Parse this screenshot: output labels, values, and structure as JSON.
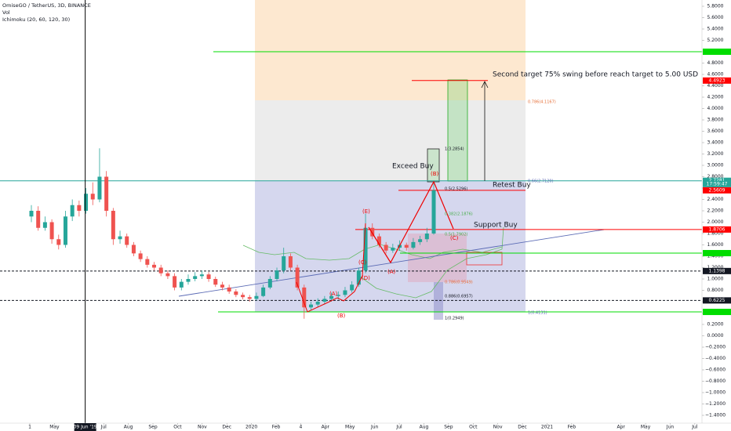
{
  "chart_data": {
    "type": "candlestick",
    "title": "OmiseGO / TetherUS, 3D, BINANCE",
    "indicators": [
      "Vol",
      "Ichimoku (20, 60, 120, 30)"
    ],
    "ylim": [
      -1.4,
      5.8
    ],
    "yticks": [
      {
        "value": 5.8,
        "label": "5.8000"
      },
      {
        "value": 5.6,
        "label": "5.6000"
      },
      {
        "value": 5.4,
        "label": "5.4000"
      },
      {
        "value": 5.2,
        "label": "5.2000"
      },
      {
        "value": 5.0,
        "label": "5.0000"
      },
      {
        "value": 4.8,
        "label": "4.8000"
      },
      {
        "value": 4.6,
        "label": "4.6000"
      },
      {
        "value": 4.4,
        "label": "4.4000"
      },
      {
        "value": 4.2,
        "label": "4.2000"
      },
      {
        "value": 4.0,
        "label": "4.0000"
      },
      {
        "value": 3.8,
        "label": "3.8000"
      },
      {
        "value": 3.6,
        "label": "3.6000"
      },
      {
        "value": 3.4,
        "label": "3.4000"
      },
      {
        "value": 3.2,
        "label": "3.2000"
      },
      {
        "value": 3.0,
        "label": "3.0000"
      },
      {
        "value": 2.8,
        "label": "2.8000"
      },
      {
        "value": 2.6,
        "label": "2.6000"
      },
      {
        "value": 2.4,
        "label": "2.4000"
      },
      {
        "value": 2.2,
        "label": "2.2000"
      },
      {
        "value": 2.0,
        "label": "2.0000"
      },
      {
        "value": 1.8,
        "label": "1.8000"
      },
      {
        "value": 1.6,
        "label": "1.6000"
      },
      {
        "value": 1.4,
        "label": "1.4000"
      },
      {
        "value": 1.2,
        "label": "1.2000"
      },
      {
        "value": 1.0,
        "label": "1.0000"
      },
      {
        "value": 0.8,
        "label": "0.8000"
      },
      {
        "value": 0.6,
        "label": "0.6000"
      },
      {
        "value": 0.4,
        "label": "0.4000"
      },
      {
        "value": 0.2,
        "label": "0.2000"
      },
      {
        "value": 0,
        "label": "0.0000"
      },
      {
        "value": -0.2,
        "label": "−0.2000"
      },
      {
        "value": -0.4,
        "label": "−0.4000"
      },
      {
        "value": -0.6,
        "label": "−0.6000"
      },
      {
        "value": -0.8,
        "label": "−0.8000"
      },
      {
        "value": -1.0,
        "label": "−1.0000"
      },
      {
        "value": -1.2,
        "label": "−1.2000"
      },
      {
        "value": -1.4,
        "label": "−1.4000"
      }
    ],
    "xlim": [
      -1.21,
      27.29
    ],
    "xticks": [
      {
        "value": 0,
        "label": "1"
      },
      {
        "value": 1,
        "label": "May"
      },
      {
        "value": 3,
        "label": "Jul"
      },
      {
        "value": 4,
        "label": "Aug"
      },
      {
        "value": 5,
        "label": "Sep"
      },
      {
        "value": 6,
        "label": "Oct"
      },
      {
        "value": 7,
        "label": "Nov"
      },
      {
        "value": 8,
        "label": "Dec"
      },
      {
        "value": 9,
        "label": "2020"
      },
      {
        "value": 10,
        "label": "Feb"
      },
      {
        "value": 11,
        "label": "4"
      },
      {
        "value": 12,
        "label": "Apr"
      },
      {
        "value": 13,
        "label": "May"
      },
      {
        "value": 14,
        "label": "Jun"
      },
      {
        "value": 15,
        "label": "Jul"
      },
      {
        "value": 16,
        "label": "Aug"
      },
      {
        "value": 17,
        "label": "Sep"
      },
      {
        "value": 18,
        "label": "Oct"
      },
      {
        "value": 19,
        "label": "Nov"
      },
      {
        "value": 20,
        "label": "Dec"
      },
      {
        "value": 21,
        "label": "2021"
      },
      {
        "value": 22,
        "label": "Feb"
      },
      {
        "value": 24,
        "label": "Apr"
      },
      {
        "value": 25,
        "label": "May"
      },
      {
        "value": 26,
        "label": "Jun"
      },
      {
        "value": 27,
        "label": "Jul"
      }
    ],
    "crosshair": {
      "value": 2.25,
      "label": "09 Jun '19"
    },
    "candles": [
      [
        2.1,
        2.3,
        2.0,
        2.2
      ],
      [
        2.2,
        2.28,
        1.85,
        1.9
      ],
      [
        1.9,
        2.1,
        1.85,
        2.0
      ],
      [
        2.0,
        2.05,
        1.62,
        1.7
      ],
      [
        1.7,
        1.78,
        1.52,
        1.6
      ],
      [
        1.6,
        2.2,
        1.55,
        2.1
      ],
      [
        2.1,
        2.4,
        2.02,
        2.3
      ],
      [
        2.3,
        2.38,
        2.1,
        2.2
      ],
      [
        2.2,
        2.6,
        2.15,
        2.5
      ],
      [
        2.5,
        2.7,
        2.3,
        2.4
      ],
      [
        2.4,
        3.3,
        2.35,
        2.8
      ],
      [
        2.8,
        2.9,
        2.1,
        2.2
      ],
      [
        2.2,
        2.25,
        1.6,
        1.7
      ],
      [
        1.7,
        1.85,
        1.62,
        1.75
      ],
      [
        1.75,
        1.8,
        1.55,
        1.6
      ],
      [
        1.6,
        1.65,
        1.4,
        1.45
      ],
      [
        1.45,
        1.5,
        1.3,
        1.35
      ],
      [
        1.35,
        1.4,
        1.2,
        1.25
      ],
      [
        1.25,
        1.3,
        1.15,
        1.2
      ],
      [
        1.2,
        1.25,
        1.05,
        1.1
      ],
      [
        1.1,
        1.15,
        1.0,
        1.05
      ],
      [
        1.05,
        1.1,
        0.8,
        0.85
      ],
      [
        0.85,
        1.0,
        0.8,
        0.95
      ],
      [
        0.95,
        1.08,
        0.9,
        1.0
      ],
      [
        1.0,
        1.12,
        0.96,
        1.05
      ],
      [
        1.05,
        1.15,
        1.0,
        1.08
      ],
      [
        1.08,
        1.12,
        0.95,
        1.0
      ],
      [
        1.0,
        1.04,
        0.86,
        0.9
      ],
      [
        0.9,
        0.95,
        0.8,
        0.85
      ],
      [
        0.85,
        0.9,
        0.74,
        0.78
      ],
      [
        0.78,
        0.82,
        0.68,
        0.72
      ],
      [
        0.72,
        0.76,
        0.64,
        0.68
      ],
      [
        0.68,
        0.72,
        0.6,
        0.65
      ],
      [
        0.65,
        0.76,
        0.62,
        0.7
      ],
      [
        0.7,
        0.9,
        0.68,
        0.85
      ],
      [
        0.85,
        1.05,
        0.82,
        1.0
      ],
      [
        1.0,
        1.2,
        0.96,
        1.15
      ],
      [
        1.15,
        1.55,
        1.1,
        1.4
      ],
      [
        1.4,
        1.45,
        1.15,
        1.2
      ],
      [
        1.2,
        1.25,
        0.8,
        0.85
      ],
      [
        0.85,
        0.9,
        0.3,
        0.5
      ],
      [
        0.5,
        0.6,
        0.45,
        0.55
      ],
      [
        0.55,
        0.66,
        0.5,
        0.6
      ],
      [
        0.6,
        0.7,
        0.55,
        0.65
      ],
      [
        0.65,
        0.76,
        0.6,
        0.7
      ],
      [
        0.7,
        0.78,
        0.64,
        0.72
      ],
      [
        0.72,
        0.86,
        0.68,
        0.8
      ],
      [
        0.8,
        0.96,
        0.76,
        0.9
      ],
      [
        0.9,
        1.2,
        0.86,
        1.15
      ],
      [
        1.15,
        2.15,
        1.1,
        1.9
      ],
      [
        1.9,
        1.98,
        1.7,
        1.75
      ],
      [
        1.75,
        1.8,
        1.55,
        1.6
      ],
      [
        1.6,
        1.65,
        1.45,
        1.5
      ],
      [
        1.5,
        1.62,
        1.46,
        1.55
      ],
      [
        1.55,
        1.68,
        1.5,
        1.6
      ],
      [
        1.6,
        1.64,
        1.5,
        1.55
      ],
      [
        1.55,
        1.72,
        1.52,
        1.65
      ],
      [
        1.65,
        1.76,
        1.6,
        1.7
      ],
      [
        1.7,
        1.9,
        1.65,
        1.8
      ],
      [
        1.8,
        2.72,
        1.78,
        2.56
      ]
    ],
    "up_color": "#26a69a",
    "down_color": "#ef5350",
    "levels": [
      {
        "value": 5.0,
        "color": "#00dd00"
      },
      {
        "value": 4.4923,
        "color": "#ff0000",
        "label": "4.4923"
      },
      {
        "value": 2.7281,
        "color": "#26a69a",
        "label": "2.7281"
      },
      {
        "value": 2.5609,
        "color": "#ff0000",
        "label": "2.5609"
      },
      {
        "value": 1.8706,
        "color": "#ff0000",
        "label": "1.8706"
      },
      {
        "value": 1.455,
        "color": "#00dd00"
      },
      {
        "value": 1.1398,
        "color": "#131722",
        "label": "1.1398"
      },
      {
        "value": 0.6225,
        "color": "#131722",
        "label": "0.6225"
      },
      {
        "value": 0.42,
        "color": "#00dd00"
      }
    ],
    "countdown": "17:59:47",
    "annotations": [
      "Second target 75% swing before reach target to 5.00 USD",
      "Exceed Buy",
      "Retest Buy",
      "Support Buy"
    ],
    "waves": [
      "(A)",
      "(B)",
      "(C)",
      "(D)",
      "(E)",
      "(A)",
      "(B)",
      "(C)"
    ],
    "fib_labels": [
      "0.786(4.1167)",
      "1(3.2854)",
      "0.66(2.7120)",
      "0.5(2.5296)",
      "0.382(2.1876)",
      "0.5(1.7902)",
      "0.786(0.9549)",
      "0.886(0.6957)",
      "1(0.4131)",
      "1(0.2949)"
    ]
  }
}
